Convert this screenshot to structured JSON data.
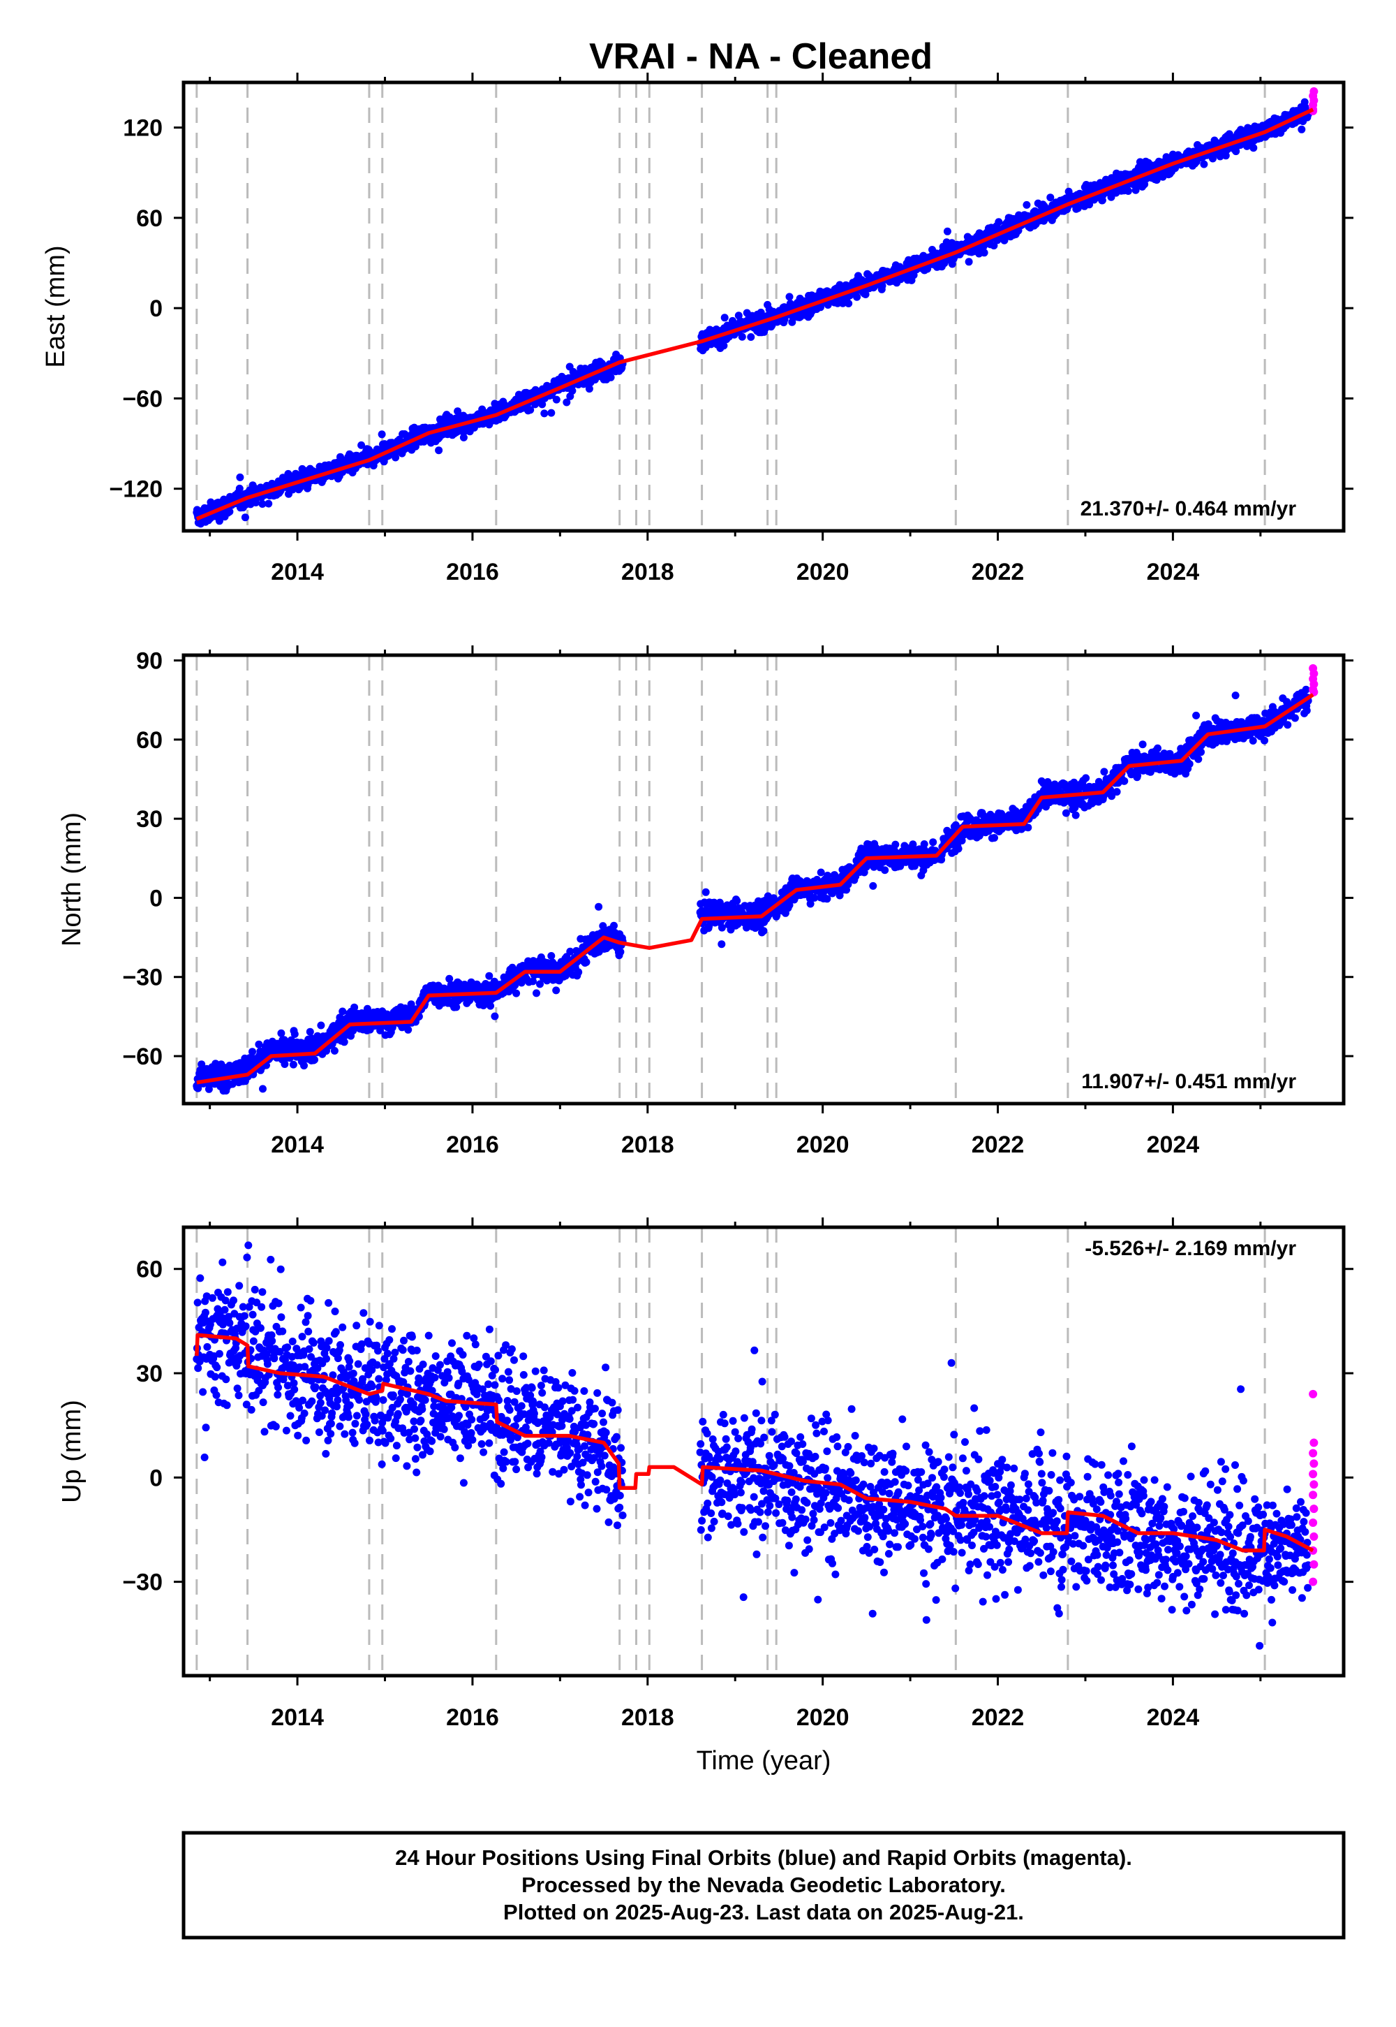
{
  "title": "VRAI  - NA - Cleaned",
  "colors": {
    "final_orbits": "#0000ff",
    "rapid_orbits": "#ff00ff",
    "model": "#ff0000",
    "event_lines": "#bbbbbb"
  },
  "footer": {
    "line1": "24 Hour Positions Using Final Orbits (blue) and Rapid Orbits (magenta).",
    "line2": "Processed by the Nevada Geodetic Laboratory.",
    "line3": "Plotted on 2025-Aug-23. Last data on 2025-Aug-21."
  },
  "chart_data": [
    {
      "type": "scatter",
      "title": "VRAI  - NA - Cleaned",
      "ylabel": "East (mm)",
      "xlabel": "",
      "rate_label": "21.370+/- 0.464 mm/yr",
      "xlim": [
        2012.7,
        2025.95
      ],
      "ylim": [
        -148,
        150
      ],
      "xticks": [
        2014,
        2016,
        2018,
        2020,
        2022,
        2024
      ],
      "yticks": [
        120,
        60,
        0,
        -60,
        -120
      ],
      "ytick_labels": [
        "120",
        "60",
        "0",
        "−60",
        "−120"
      ],
      "event_lines": [
        2012.85,
        2013.43,
        2014.82,
        2014.97,
        2016.27,
        2017.68,
        2017.87,
        2018.02,
        2018.62,
        2019.37,
        2019.47,
        2021.52,
        2022.8,
        2025.05
      ],
      "series": [
        {
          "name": "Final Orbits",
          "color": "#0000ff",
          "kind": "points",
          "anchors": [
            [
              2012.85,
              -140
            ],
            [
              2013.43,
              -125
            ],
            [
              2014.82,
              -100
            ],
            [
              2015.5,
              -83
            ],
            [
              2016.27,
              -70
            ],
            [
              2017.0,
              -52
            ],
            [
              2017.68,
              -36
            ],
            [
              2018.62,
              -22
            ],
            [
              2019.47,
              -6
            ],
            [
              2020.5,
              16
            ],
            [
              2021.52,
              38
            ],
            [
              2022.8,
              70
            ],
            [
              2024.0,
              96
            ],
            [
              2025.05,
              118
            ],
            [
              2025.55,
              131
            ]
          ],
          "gaps": [
            [
              2017.72,
              2018.6
            ]
          ],
          "noise": 3.2
        },
        {
          "name": "Rapid Orbits",
          "color": "#ff00ff",
          "kind": "points",
          "points": [
            [
              2025.6,
              132
            ],
            [
              2025.6,
              135
            ],
            [
              2025.61,
              138
            ],
            [
              2025.6,
              141
            ],
            [
              2025.61,
              144
            ],
            [
              2025.6,
              131
            ]
          ]
        },
        {
          "name": "Model",
          "color": "#ff0000",
          "kind": "line",
          "points": [
            [
              2012.85,
              -140
            ],
            [
              2013.43,
              -126
            ],
            [
              2014.82,
              -101
            ],
            [
              2015.5,
              -83
            ],
            [
              2016.27,
              -71
            ],
            [
              2017.0,
              -53
            ],
            [
              2017.68,
              -36
            ],
            [
              2018.62,
              -22
            ],
            [
              2019.47,
              -6
            ],
            [
              2020.5,
              15
            ],
            [
              2021.52,
              37
            ],
            [
              2022.8,
              69
            ],
            [
              2024.0,
              96
            ],
            [
              2025.05,
              117
            ],
            [
              2025.6,
              132
            ]
          ]
        }
      ]
    },
    {
      "type": "scatter",
      "title": "",
      "ylabel": "North (mm)",
      "xlabel": "",
      "rate_label": "11.907+/- 0.451 mm/yr",
      "xlim": [
        2012.7,
        2025.95
      ],
      "ylim": [
        -78,
        92
      ],
      "xticks": [
        2014,
        2016,
        2018,
        2020,
        2022,
        2024
      ],
      "yticks": [
        90,
        60,
        30,
        0,
        -30,
        -60
      ],
      "ytick_labels": [
        "90",
        "60",
        "30",
        "0",
        "−30",
        "−60"
      ],
      "event_lines": [
        2012.85,
        2013.43,
        2014.82,
        2014.97,
        2016.27,
        2017.68,
        2017.87,
        2018.02,
        2018.62,
        2019.37,
        2019.47,
        2021.52,
        2022.8,
        2025.05
      ],
      "series": [
        {
          "name": "Final Orbits",
          "color": "#0000ff",
          "kind": "points",
          "anchors": [
            [
              2012.85,
              -69
            ],
            [
              2013.43,
              -65
            ],
            [
              2013.7,
              -58
            ],
            [
              2014.2,
              -58
            ],
            [
              2014.6,
              -47
            ],
            [
              2015.3,
              -46
            ],
            [
              2015.5,
              -36
            ],
            [
              2016.27,
              -36
            ],
            [
              2016.6,
              -27
            ],
            [
              2017.0,
              -28
            ],
            [
              2017.5,
              -15
            ],
            [
              2017.68,
              -17
            ],
            [
              2018.62,
              -6
            ],
            [
              2019.3,
              -7
            ],
            [
              2019.7,
              3
            ],
            [
              2020.2,
              5
            ],
            [
              2020.5,
              16
            ],
            [
              2021.3,
              16
            ],
            [
              2021.6,
              27
            ],
            [
              2022.3,
              29
            ],
            [
              2022.5,
              39
            ],
            [
              2023.2,
              40
            ],
            [
              2023.5,
              51
            ],
            [
              2024.1,
              52
            ],
            [
              2024.4,
              62
            ],
            [
              2025.05,
              65
            ],
            [
              2025.55,
              76
            ]
          ],
          "gaps": [
            [
              2017.72,
              2018.6
            ]
          ],
          "noise": 2.4
        },
        {
          "name": "Rapid Orbits",
          "color": "#ff00ff",
          "kind": "points",
          "points": [
            [
              2025.6,
              79
            ],
            [
              2025.61,
              81
            ],
            [
              2025.6,
              83
            ],
            [
              2025.61,
              85
            ],
            [
              2025.6,
              87
            ],
            [
              2025.61,
              78
            ]
          ]
        },
        {
          "name": "Model",
          "color": "#ff0000",
          "kind": "line",
          "points": [
            [
              2012.85,
              -70
            ],
            [
              2013.43,
              -67
            ],
            [
              2013.7,
              -60
            ],
            [
              2014.2,
              -59
            ],
            [
              2014.6,
              -48
            ],
            [
              2015.3,
              -47
            ],
            [
              2015.5,
              -37
            ],
            [
              2016.27,
              -36
            ],
            [
              2016.6,
              -28
            ],
            [
              2017.0,
              -28
            ],
            [
              2017.5,
              -15
            ],
            [
              2017.68,
              -17
            ],
            [
              2018.02,
              -19
            ],
            [
              2018.5,
              -16
            ],
            [
              2018.62,
              -8
            ],
            [
              2019.3,
              -7
            ],
            [
              2019.7,
              3
            ],
            [
              2020.2,
              5
            ],
            [
              2020.5,
              15
            ],
            [
              2021.3,
              16
            ],
            [
              2021.6,
              27
            ],
            [
              2022.3,
              28
            ],
            [
              2022.5,
              38
            ],
            [
              2023.2,
              40
            ],
            [
              2023.5,
              50
            ],
            [
              2024.1,
              52
            ],
            [
              2024.4,
              62
            ],
            [
              2025.05,
              65
            ],
            [
              2025.6,
              77
            ]
          ]
        }
      ]
    },
    {
      "type": "scatter",
      "title": "",
      "ylabel": "Up (mm)",
      "xlabel": "Time (year)",
      "rate_label": "-5.526+/- 2.169 mm/yr",
      "xlim": [
        2012.7,
        2025.95
      ],
      "ylim": [
        -57,
        72
      ],
      "xticks": [
        2014,
        2016,
        2018,
        2020,
        2022,
        2024
      ],
      "yticks": [
        60,
        30,
        0,
        -30
      ],
      "ytick_labels": [
        "60",
        "30",
        "0",
        "−30"
      ],
      "event_lines": [
        2012.85,
        2013.43,
        2014.82,
        2014.97,
        2016.27,
        2017.68,
        2017.87,
        2018.02,
        2018.62,
        2019.37,
        2019.47,
        2021.52,
        2022.8,
        2025.05
      ],
      "series": [
        {
          "name": "Final Orbits",
          "color": "#0000ff",
          "kind": "points",
          "anchors": [
            [
              2012.85,
              40
            ],
            [
              2013.43,
              38
            ],
            [
              2014.0,
              30
            ],
            [
              2014.82,
              25
            ],
            [
              2016.27,
              21
            ],
            [
              2017.0,
              13
            ],
            [
              2017.68,
              5
            ],
            [
              2018.62,
              1
            ],
            [
              2019.47,
              0
            ],
            [
              2020.5,
              -6
            ],
            [
              2021.52,
              -10
            ],
            [
              2022.8,
              -13
            ],
            [
              2024.0,
              -17
            ],
            [
              2025.05,
              -20
            ],
            [
              2025.55,
              -23
            ]
          ],
          "gaps": [
            [
              2017.72,
              2018.6
            ]
          ],
          "noise": 9
        },
        {
          "name": "Rapid Orbits",
          "color": "#ff00ff",
          "kind": "points",
          "points": [
            [
              2025.6,
              24
            ],
            [
              2025.61,
              10
            ],
            [
              2025.6,
              7
            ],
            [
              2025.61,
              4
            ],
            [
              2025.6,
              1
            ],
            [
              2025.61,
              -2
            ],
            [
              2025.6,
              -5
            ],
            [
              2025.61,
              -9
            ],
            [
              2025.6,
              -13
            ],
            [
              2025.61,
              -17
            ],
            [
              2025.6,
              -21
            ],
            [
              2025.61,
              -25
            ],
            [
              2025.6,
              -30
            ]
          ]
        },
        {
          "name": "Model",
          "color": "#ff0000",
          "kind": "line",
          "points": [
            [
              2012.85,
              35
            ],
            [
              2012.86,
              41
            ],
            [
              2013.3,
              40
            ],
            [
              2013.43,
              38
            ],
            [
              2013.44,
              32
            ],
            [
              2013.8,
              30
            ],
            [
              2014.3,
              29
            ],
            [
              2014.82,
              24
            ],
            [
              2014.97,
              25
            ],
            [
              2014.98,
              27
            ],
            [
              2015.5,
              24
            ],
            [
              2015.7,
              22
            ],
            [
              2016.27,
              21
            ],
            [
              2016.28,
              16
            ],
            [
              2016.6,
              12
            ],
            [
              2017.1,
              12
            ],
            [
              2017.5,
              10
            ],
            [
              2017.67,
              4
            ],
            [
              2017.68,
              -3
            ],
            [
              2017.86,
              -3
            ],
            [
              2017.87,
              1
            ],
            [
              2018.01,
              1
            ],
            [
              2018.02,
              3
            ],
            [
              2018.3,
              3
            ],
            [
              2018.62,
              -2
            ],
            [
              2018.63,
              3
            ],
            [
              2019.3,
              2
            ],
            [
              2019.8,
              -1
            ],
            [
              2020.2,
              -2
            ],
            [
              2020.5,
              -6
            ],
            [
              2021.0,
              -7
            ],
            [
              2021.4,
              -9
            ],
            [
              2021.52,
              -11
            ],
            [
              2022.0,
              -11
            ],
            [
              2022.5,
              -16
            ],
            [
              2022.79,
              -16
            ],
            [
              2022.8,
              -10
            ],
            [
              2023.2,
              -11
            ],
            [
              2023.6,
              -16
            ],
            [
              2024.0,
              -16
            ],
            [
              2024.5,
              -18
            ],
            [
              2024.8,
              -21
            ],
            [
              2025.04,
              -21
            ],
            [
              2025.05,
              -15
            ],
            [
              2025.3,
              -17
            ],
            [
              2025.6,
              -21
            ]
          ]
        }
      ]
    }
  ]
}
